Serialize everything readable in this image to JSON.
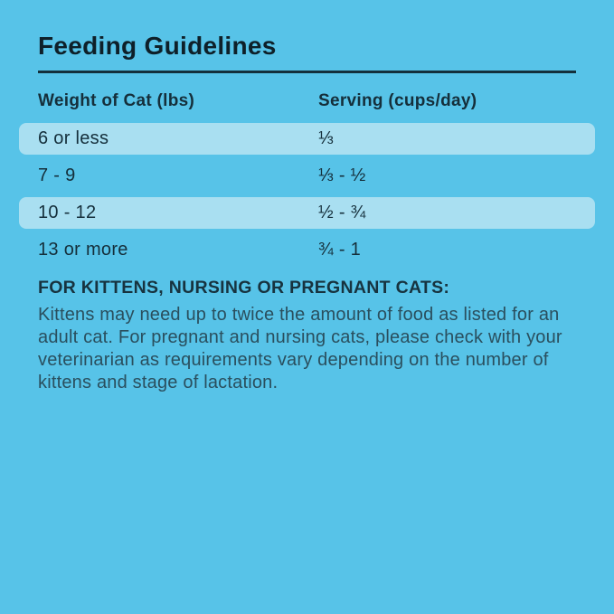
{
  "page": {
    "background_color": "#57C3E8",
    "row_highlight_color": "#A9DFF1",
    "rule_color": "#14303C",
    "title_color": "#0E2029",
    "text_color": "#152F3B",
    "note_body_color": "#2A4F5E"
  },
  "title": "Feeding Guidelines",
  "table": {
    "headers": {
      "weight": "Weight of Cat (lbs)",
      "serving": "Serving (cups/day)"
    },
    "rows": [
      {
        "weight": "6 or less",
        "serving": "⅓",
        "highlighted": true
      },
      {
        "weight": "7 - 9",
        "serving": "⅓ - ½",
        "highlighted": false
      },
      {
        "weight": "10 - 12",
        "serving": "½ - ¾",
        "highlighted": true
      },
      {
        "weight": "13 or more",
        "serving": "¾ - 1",
        "highlighted": false
      }
    ]
  },
  "note": {
    "heading": "FOR KITTENS, NURSING OR PREGNANT CATS:",
    "body": "Kittens may need up to twice the amount of food as listed for an adult cat. For pregnant and nursing cats, please check with your veterinarian as requirements vary depending on the number of kittens and stage of lactation."
  }
}
